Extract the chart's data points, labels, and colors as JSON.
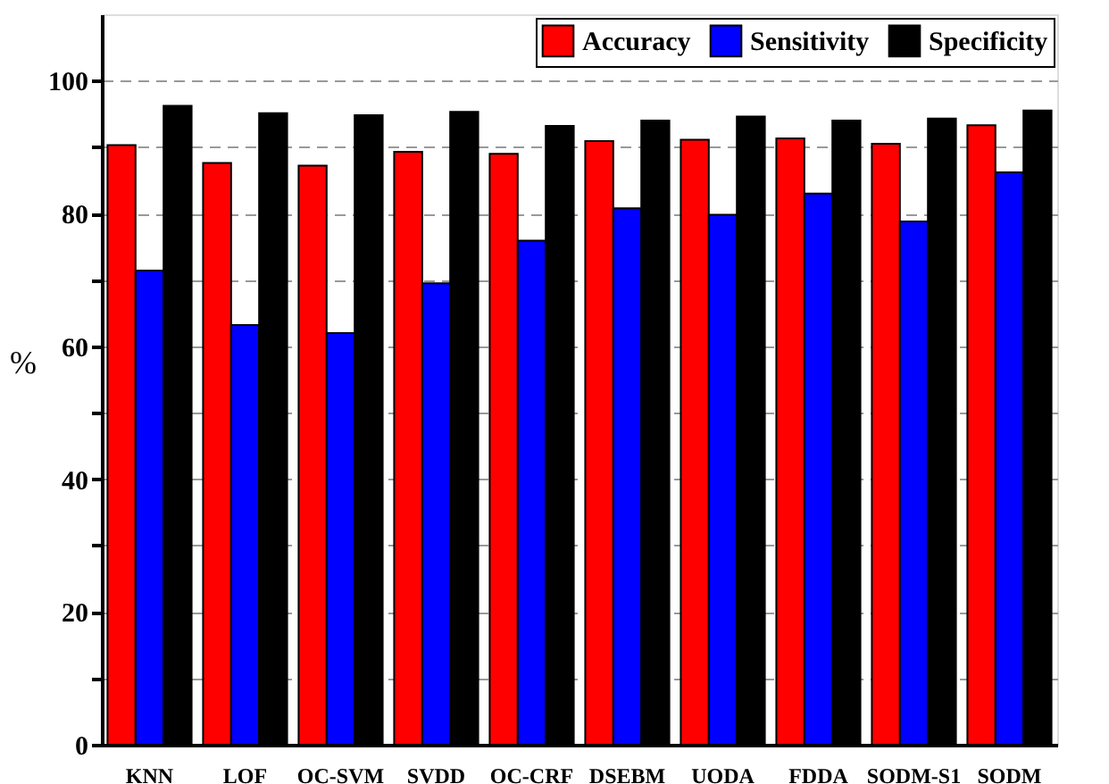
{
  "chart_data": {
    "type": "bar",
    "ylabel": "%",
    "categories": [
      "KNN",
      "LOF",
      "OC-SVM",
      "SVDD",
      "OC-CRF",
      "DSEBM",
      "UODA",
      "FDDA",
      "SODM-S1",
      "SODM"
    ],
    "series": [
      {
        "name": "Accuracy",
        "color": "#ff0000",
        "values": [
          90.3,
          87.6,
          87.2,
          89.3,
          89.0,
          90.9,
          91.1,
          91.3,
          90.5,
          93.3
        ]
      },
      {
        "name": "Sensitivity",
        "color": "#0000ff",
        "values": [
          71.4,
          63.2,
          62.0,
          69.5,
          75.9,
          80.8,
          79.8,
          83.0,
          78.8,
          86.2
        ]
      },
      {
        "name": "Specificity",
        "color": "#000000",
        "values": [
          96.2,
          95.1,
          94.8,
          95.3,
          93.2,
          94.0,
          94.6,
          94.0,
          94.3,
          95.5
        ]
      }
    ],
    "ylim": [
      0,
      110
    ],
    "yticks": [
      0,
      {
        "value": 10,
        "label": null
      },
      20,
      {
        "value": 30,
        "label": null
      },
      40,
      {
        "value": 50,
        "label": null
      },
      60,
      {
        "value": 70,
        "label": null
      },
      80,
      {
        "value": 90,
        "label": null
      },
      100
    ],
    "grid": "y",
    "legend": "top right"
  }
}
